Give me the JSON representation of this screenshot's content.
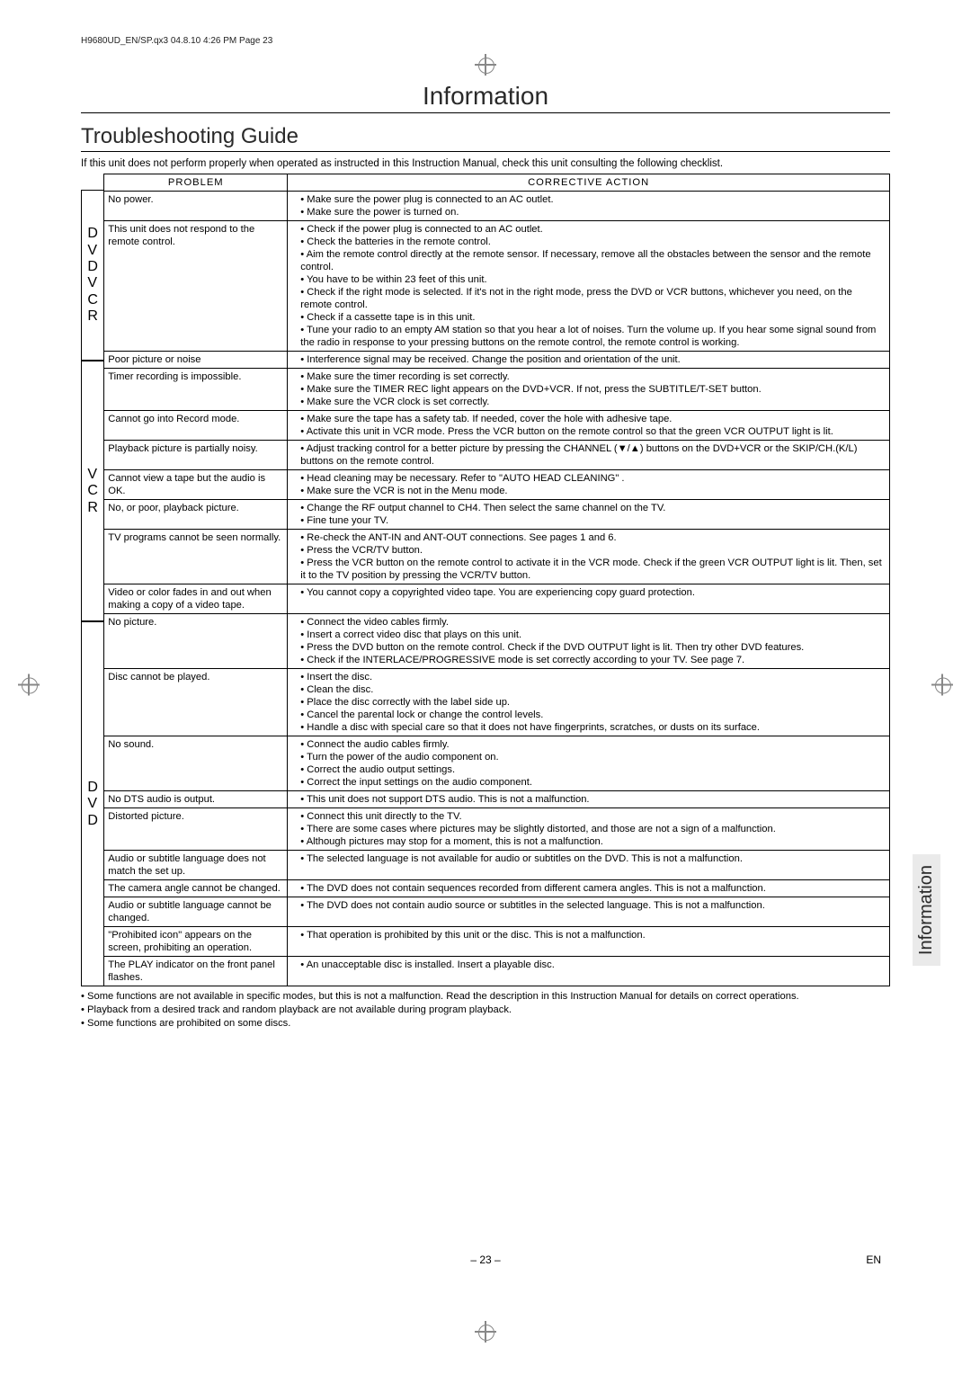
{
  "header_line": "H9680UD_EN/SP.qx3  04.8.10  4:26 PM  Page 23",
  "section_title": "Information",
  "sub_title": "Troubleshooting Guide",
  "intro": "If this unit does not perform properly when operated as instructed in this Instruction Manual, check this unit consulting the following checklist.",
  "col_problem": "PROBLEM",
  "col_action": "CORRECTIVE ACTION",
  "side": {
    "dvd_vcr": "D\nV\nD\nV\nC\nR",
    "vcr": "V\nC\nR",
    "dvd": "D\nV\nD"
  },
  "rows": [
    {
      "p": "No power.",
      "a": [
        "Make sure the power plug is connected to an AC outlet.",
        "Make sure the power is turned on."
      ]
    },
    {
      "p": "This unit does not respond to the remote control.",
      "a": [
        "Check if the power plug is connected to an AC outlet.",
        "Check the batteries in the remote control.",
        "Aim the remote control directly at the remote sensor.  If necessary, remove all the obstacles between the sensor and the remote control.",
        "You have to be within 23 feet of this unit.",
        "Check if the right mode is selected.  If it's not in the right mode, press the DVD or VCR buttons, whichever you need, on the remote control.",
        "Check if a cassette tape is in this unit.",
        "Tune your radio to an empty AM station so that you hear a lot of noises. Turn the volume up. If you hear some signal sound from the radio in response to your pressing buttons on the remote control, the remote control is working."
      ]
    },
    {
      "p": "Poor picture or noise",
      "a": [
        "Interference signal may be received. Change the position and orientation of the unit."
      ]
    },
    {
      "p": "Timer recording is impossible.",
      "a": [
        "Make sure the timer recording is set correctly.",
        "Make sure the TIMER REC light appears on the DVD+VCR.  If not, press the SUBTITLE/T-SET button.",
        "Make sure the VCR clock is set correctly."
      ]
    },
    {
      "p": "Cannot go into Record mode.",
      "a": [
        "Make sure the tape has a safety tab. If needed, cover the hole with adhesive tape.",
        "Activate this unit in VCR mode.  Press the VCR button on the remote control so that the green VCR OUTPUT light is lit."
      ]
    },
    {
      "p": "Playback picture is partially noisy.",
      "a": [
        "Adjust tracking control for a better picture by pressing the CHANNEL (▼/▲) buttons on the DVD+VCR or the SKIP/CH.(K/L) buttons on the remote control."
      ]
    },
    {
      "p": "Cannot view a tape but the audio is OK.",
      "a": [
        "Head cleaning may be necessary.  Refer to \"AUTO HEAD CLEANING\" .",
        "Make sure the VCR is not in the Menu mode."
      ]
    },
    {
      "p": "No, or poor, playback picture.",
      "a": [
        "Change the RF output channel to CH4.  Then select the same channel on the TV.",
        "Fine tune your TV."
      ]
    },
    {
      "p": "TV programs cannot be seen normally.",
      "a": [
        "Re-check the ANT-IN and ANT-OUT connections.  See pages 1 and 6.",
        "Press the VCR/TV button.",
        "Press the VCR button on the remote control to activate it in the VCR mode.  Check if the green VCR OUTPUT light is lit.  Then, set it to the TV position by pressing the VCR/TV button."
      ]
    },
    {
      "p": "Video or color fades in and out when making a copy of a video tape.",
      "a": [
        "You cannot copy a copyrighted video tape. You are experiencing copy guard protection."
      ]
    },
    {
      "p": "No picture.",
      "a": [
        "Connect the video cables firmly.",
        "Insert a correct video disc that plays on this unit.",
        "Press the DVD button on the remote control.  Check if the DVD OUTPUT light is lit.  Then try other DVD features.",
        "Check if the INTERLACE/PROGRESSIVE mode is set correctly according to your TV. See page 7."
      ]
    },
    {
      "p": "Disc cannot be played.",
      "a": [
        "Insert the disc.",
        "Clean the disc.",
        "Place the disc correctly with the label side up.",
        "Cancel the parental lock or change the control levels.",
        "Handle a disc with special care so that it does not have fingerprints, scratches, or dusts on its surface."
      ]
    },
    {
      "p": "No sound.",
      "a": [
        "Connect the audio cables firmly.",
        "Turn the power of the audio component on.",
        "Correct the audio output settings.",
        "Correct the input settings on the audio component."
      ]
    },
    {
      "p": "No DTS audio is output.",
      "a": [
        "This unit does not support DTS audio. This is not a malfunction."
      ]
    },
    {
      "p": "Distorted picture.",
      "a": [
        "Connect this unit directly to the TV.",
        "There are some cases where pictures may be slightly distorted, and those are not a sign of a malfunction.",
        "Although pictures may stop for a moment, this is not a malfunction."
      ]
    },
    {
      "p": "Audio or subtitle language does not match the set up.",
      "a": [
        "The selected language is not available for audio or subtitles on the DVD. This is not a malfunction."
      ]
    },
    {
      "p": "The camera angle cannot be changed.",
      "a": [
        "The DVD does not contain sequences recorded from different camera angles. This is not a malfunction."
      ]
    },
    {
      "p": "Audio or subtitle language cannot be changed.",
      "a": [
        "The DVD does not contain audio source or subtitles in the selected language. This is not a malfunction."
      ]
    },
    {
      "p": "\"Prohibited icon\" appears on the screen, prohibiting an operation.",
      "a": [
        "That operation is prohibited by this unit or the disc. This is not a malfunction."
      ]
    },
    {
      "p": "The PLAY indicator on the front panel flashes.",
      "a": [
        "An unacceptable disc is installed. Insert a playable disc."
      ]
    }
  ],
  "notes": [
    "Some functions are not available in specific modes, but this is not a malfunction. Read the description in this Instruction Manual for details on correct operations.",
    "Playback from a desired track and random playback are not available during program playback.",
    "Some functions are prohibited on some discs."
  ],
  "page_number": "– 23 –",
  "lang_code": "EN",
  "tab_label": "Information"
}
